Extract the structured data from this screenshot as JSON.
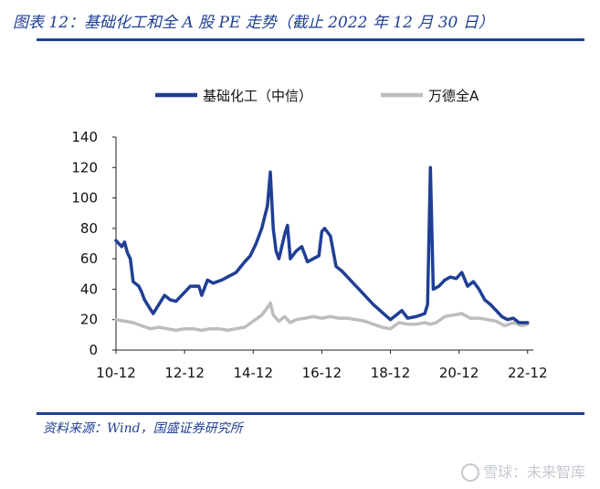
{
  "title": "图表 12：基础化工和全 A 股 PE 走势（截止 2022 年 12 月 30 日）",
  "source": "资料来源：Wind，国盛证券研究所",
  "watermark": "雪球：未来智库",
  "colors": {
    "accent": "#1f3f94",
    "series_a": "#1f3f94",
    "series_b": "#bdbdbd"
  },
  "chart_data": {
    "type": "line",
    "title": "",
    "xlabel": "",
    "ylabel": "",
    "ylim": [
      0,
      140
    ],
    "yticks": [
      0,
      20,
      40,
      60,
      80,
      100,
      120,
      140
    ],
    "xlim": [
      "2010-12",
      "2023-02"
    ],
    "xticks": [
      "10-12",
      "12-12",
      "14-12",
      "16-12",
      "18-12",
      "20-12",
      "22-12"
    ],
    "grid": false,
    "legend": "top",
    "series": [
      {
        "name": "基础化工（中信）",
        "color": "#1f3f94",
        "points": [
          [
            "2010-12",
            72
          ],
          [
            "2011-02",
            68
          ],
          [
            "2011-03",
            71
          ],
          [
            "2011-04",
            64
          ],
          [
            "2011-05",
            60
          ],
          [
            "2011-06",
            45
          ],
          [
            "2011-08",
            42
          ],
          [
            "2011-09",
            38
          ],
          [
            "2011-10",
            33
          ],
          [
            "2011-11",
            30
          ],
          [
            "2012-01",
            24
          ],
          [
            "2012-03",
            30
          ],
          [
            "2012-05",
            36
          ],
          [
            "2012-07",
            33
          ],
          [
            "2012-09",
            32
          ],
          [
            "2012-12",
            38
          ],
          [
            "2013-02",
            42
          ],
          [
            "2013-05",
            42
          ],
          [
            "2013-06",
            36
          ],
          [
            "2013-08",
            46
          ],
          [
            "2013-10",
            44
          ],
          [
            "2014-01",
            46
          ],
          [
            "2014-03",
            48
          ],
          [
            "2014-06",
            51
          ],
          [
            "2014-09",
            58
          ],
          [
            "2014-11",
            62
          ],
          [
            "2015-01",
            70
          ],
          [
            "2015-03",
            80
          ],
          [
            "2015-05",
            95
          ],
          [
            "2015-06",
            117
          ],
          [
            "2015-07",
            80
          ],
          [
            "2015-08",
            65
          ],
          [
            "2015-09",
            60
          ],
          [
            "2015-11",
            76
          ],
          [
            "2015-12",
            82
          ],
          [
            "2016-01",
            60
          ],
          [
            "2016-03",
            65
          ],
          [
            "2016-05",
            68
          ],
          [
            "2016-07",
            58
          ],
          [
            "2016-09",
            60
          ],
          [
            "2016-11",
            62
          ],
          [
            "2016-12",
            78
          ],
          [
            "2017-01",
            80
          ],
          [
            "2017-03",
            75
          ],
          [
            "2017-05",
            55
          ],
          [
            "2017-07",
            52
          ],
          [
            "2017-09",
            48
          ],
          [
            "2017-11",
            44
          ],
          [
            "2018-01",
            40
          ],
          [
            "2018-03",
            36
          ],
          [
            "2018-06",
            30
          ],
          [
            "2018-09",
            25
          ],
          [
            "2018-12",
            20
          ],
          [
            "2019-02",
            23
          ],
          [
            "2019-04",
            26
          ],
          [
            "2019-06",
            21
          ],
          [
            "2019-09",
            22
          ],
          [
            "2019-12",
            24
          ],
          [
            "2020-01",
            30
          ],
          [
            "2020-02",
            120
          ],
          [
            "2020-03",
            40
          ],
          [
            "2020-05",
            42
          ],
          [
            "2020-07",
            46
          ],
          [
            "2020-09",
            48
          ],
          [
            "2020-11",
            47
          ],
          [
            "2021-01",
            51
          ],
          [
            "2021-03",
            42
          ],
          [
            "2021-05",
            45
          ],
          [
            "2021-07",
            40
          ],
          [
            "2021-09",
            33
          ],
          [
            "2021-11",
            30
          ],
          [
            "2022-01",
            26
          ],
          [
            "2022-03",
            22
          ],
          [
            "2022-05",
            20
          ],
          [
            "2022-07",
            21
          ],
          [
            "2022-09",
            18
          ],
          [
            "2022-12",
            18
          ]
        ]
      },
      {
        "name": "万德全A",
        "color": "#bdbdbd",
        "points": [
          [
            "2010-12",
            20
          ],
          [
            "2011-03",
            19
          ],
          [
            "2011-06",
            18
          ],
          [
            "2011-09",
            16
          ],
          [
            "2011-12",
            14
          ],
          [
            "2012-03",
            15
          ],
          [
            "2012-06",
            14
          ],
          [
            "2012-09",
            13
          ],
          [
            "2012-12",
            14
          ],
          [
            "2013-03",
            14
          ],
          [
            "2013-06",
            13
          ],
          [
            "2013-09",
            14
          ],
          [
            "2013-12",
            14
          ],
          [
            "2014-03",
            13
          ],
          [
            "2014-06",
            14
          ],
          [
            "2014-09",
            15
          ],
          [
            "2014-12",
            19
          ],
          [
            "2015-03",
            23
          ],
          [
            "2015-05",
            28
          ],
          [
            "2015-06",
            31
          ],
          [
            "2015-07",
            23
          ],
          [
            "2015-09",
            19
          ],
          [
            "2015-11",
            22
          ],
          [
            "2016-01",
            18
          ],
          [
            "2016-03",
            20
          ],
          [
            "2016-06",
            21
          ],
          [
            "2016-09",
            22
          ],
          [
            "2016-12",
            21
          ],
          [
            "2017-03",
            22
          ],
          [
            "2017-06",
            21
          ],
          [
            "2017-09",
            21
          ],
          [
            "2017-12",
            20
          ],
          [
            "2018-03",
            19
          ],
          [
            "2018-06",
            17
          ],
          [
            "2018-09",
            15
          ],
          [
            "2018-12",
            14
          ],
          [
            "2019-03",
            18
          ],
          [
            "2019-06",
            17
          ],
          [
            "2019-09",
            17
          ],
          [
            "2019-12",
            18
          ],
          [
            "2020-02",
            17
          ],
          [
            "2020-04",
            18
          ],
          [
            "2020-07",
            22
          ],
          [
            "2020-10",
            23
          ],
          [
            "2021-01",
            24
          ],
          [
            "2021-04",
            21
          ],
          [
            "2021-07",
            21
          ],
          [
            "2021-10",
            20
          ],
          [
            "2022-01",
            19
          ],
          [
            "2022-04",
            16
          ],
          [
            "2022-07",
            18
          ],
          [
            "2022-10",
            16
          ],
          [
            "2022-12",
            17
          ]
        ]
      }
    ]
  }
}
